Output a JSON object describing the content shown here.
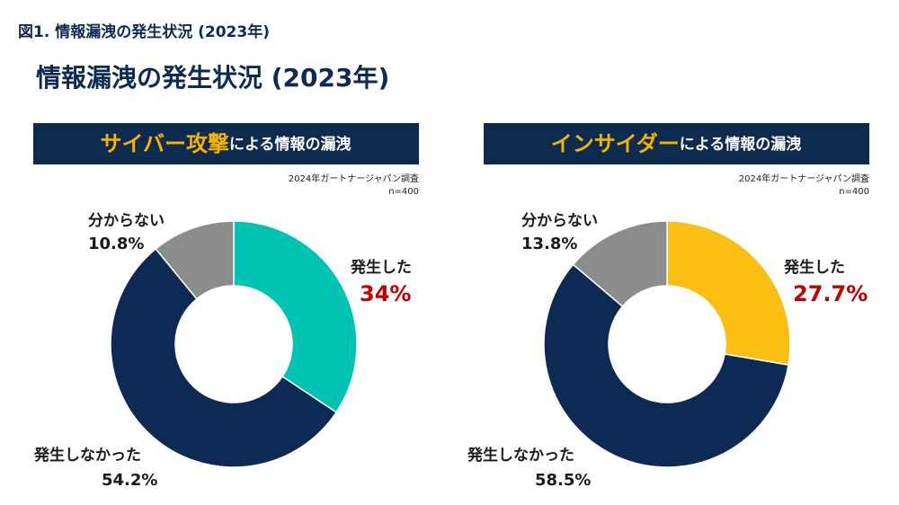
{
  "header": {
    "figure_label": "図1. 情報漏洩の発生状況 (2023年)",
    "title": "情報漏洩の発生状況 (2023年)"
  },
  "chart_data": [
    {
      "type": "donut",
      "title_highlight": "サイバー攻撃",
      "title_rest": "による情報の漏洩",
      "source": "2024年ガートナージャパン調査",
      "sample": "n=400",
      "categories": [
        "発生した",
        "発生しなかった",
        "分からない"
      ],
      "values": [
        34,
        54.2,
        10.8
      ],
      "value_labels": [
        "34%",
        "54.2%",
        "10.8%"
      ],
      "colors": [
        "#00c4b3",
        "#0d2a55",
        "#8c8c8c"
      ]
    },
    {
      "type": "donut",
      "title_highlight": "インサイダー",
      "title_rest": "による情報の漏洩",
      "source": "2024年ガートナージャパン調査",
      "sample": "n=400",
      "categories": [
        "発生した",
        "発生しなかった",
        "分からない"
      ],
      "values": [
        27.7,
        58.5,
        13.8
      ],
      "value_labels": [
        "27.7%",
        "58.5%",
        "13.8%"
      ],
      "colors": [
        "#fbbf14",
        "#0d2a55",
        "#8c8c8c"
      ]
    }
  ]
}
